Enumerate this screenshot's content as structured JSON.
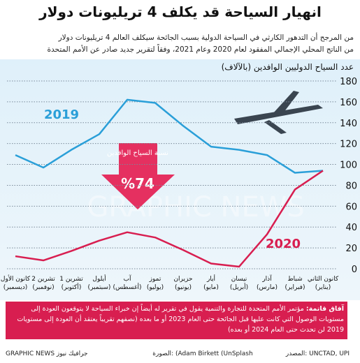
{
  "chart_data": {
    "type": "line",
    "title": "انهيار السياحة قد يكلف 4 تريليونات دولار",
    "subtitle": [
      "من المرجح أن التدهور الكارثي في السياحة الدولية بسبب الجائحة سيكلف العالم 4 تريليونات دولار",
      "من الناتج المحلي الإجمالي المفقود لعام 2020 وعام 2021، وفقاً لتقرير جديد صادر عن الأمم المتحدة"
    ],
    "y_axis_title": "عدد السياح الدوليين الوافدين (بالآلاف)",
    "categories": [
      "كانون الثاني (يناير)",
      "شباط (فبراير)",
      "آذار (مارس)",
      "نيسان (أبريل)",
      "أيار (مايو)",
      "حزيران (يونيو)",
      "تموز (يوليو)",
      "آب (أغسطس)",
      "أيلول (سبتمبر)",
      "تشرين 1 (أكتوبر)",
      "تشرين 2 (نوفمبر)",
      "كانون الأول (ديسمبر)"
    ],
    "series": [
      {
        "name": "2019",
        "color": "#2a9fd8",
        "values": [
          94,
          92,
          109,
          114,
          117,
          137,
          159,
          162,
          129,
          114,
          97,
          109
        ]
      },
      {
        "name": "2020",
        "color": "#d81e50",
        "values": [
          94,
          76,
          33,
          2,
          5,
          18,
          30,
          35,
          27,
          17,
          8,
          12
        ]
      }
    ],
    "ylim": [
      0,
      180
    ],
    "yticks": [
      0,
      20,
      40,
      60,
      80,
      100,
      120,
      140,
      160,
      180
    ],
    "grid": true,
    "drop_label": "نسبة السياح الوافدين",
    "drop_value": "%74",
    "note_title": "آفاق قاتمة:",
    "note": "مؤتمر الأمم المتحدة للتجارة والتنمية يقول في تقرير له أيضاً إن خبراء السياحة لا يتوقعون العودة إلى مستويات الوصول التي كانت عليها قبل الجائحة حتى العام 2023 أو ما بعده (نصفهم تقريباً يعتقد أن العودة إلى مستويات 2019 لن تحدث حتى العام 2024 أو بعده)",
    "source": "المصدر: UNCTAD, UPI",
    "photo": "الصورة: (Adam Birkett (UnSplash",
    "credit": "GRAPHIC NEWS جرافيك نيوز",
    "watermark": "GRAPHIC NEWS"
  }
}
